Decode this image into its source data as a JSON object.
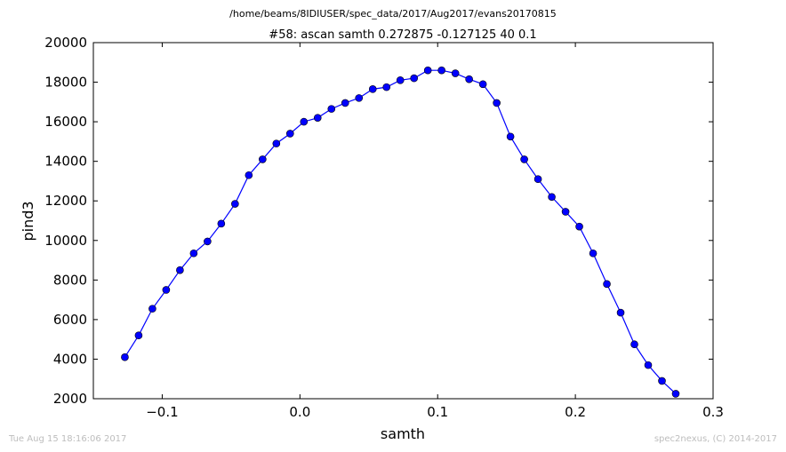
{
  "chart_data": {
    "type": "line",
    "supertitle": "/home/beams/8IDIUSER/spec_data/2017/Aug2017/evans20170815",
    "title": "#58: ascan  samth 0.272875 -0.127125  40 0.1",
    "xlabel": "samth",
    "ylabel": "pind3",
    "xlim": [
      -0.15,
      0.3
    ],
    "ylim": [
      2000,
      20000
    ],
    "xticks": [
      -0.1,
      0.0,
      0.1,
      0.2,
      0.3
    ],
    "xtick_labels": [
      "−0.1",
      "0.0",
      "0.1",
      "0.2",
      "0.3"
    ],
    "yticks": [
      2000,
      4000,
      6000,
      8000,
      10000,
      12000,
      14000,
      16000,
      18000,
      20000
    ],
    "ytick_labels": [
      "2000",
      "4000",
      "6000",
      "8000",
      "10000",
      "12000",
      "14000",
      "16000",
      "18000",
      "20000"
    ],
    "grid": false,
    "line_color": "#0000ff",
    "marker_color": "#0000ff",
    "series": [
      {
        "x": [
          -0.127125,
          -0.117125,
          -0.107125,
          -0.097125,
          -0.087125,
          -0.077125,
          -0.067125,
          -0.057125,
          -0.047125,
          -0.037125,
          -0.027125,
          -0.017125,
          -0.007125,
          0.002875,
          0.012875,
          0.022875,
          0.032875,
          0.042875,
          0.052875,
          0.062875,
          0.072875,
          0.082875,
          0.092875,
          0.102875,
          0.112875,
          0.122875,
          0.132875,
          0.142875,
          0.152875,
          0.162875,
          0.172875,
          0.182875,
          0.192875,
          0.202875,
          0.212875,
          0.222875,
          0.232875,
          0.242875,
          0.252875,
          0.262875,
          0.272875
        ],
        "y": [
          4100,
          5200,
          6550,
          7500,
          8500,
          9350,
          9950,
          10850,
          11850,
          13300,
          14100,
          14900,
          15400,
          16000,
          16200,
          16650,
          16950,
          17200,
          17650,
          17750,
          18100,
          18200,
          18600,
          18600,
          18450,
          18150,
          17900,
          16950,
          15250,
          14100,
          13100,
          12200,
          11450,
          10700,
          9350,
          7800,
          6350,
          4750,
          3700,
          2900,
          2250
        ]
      }
    ]
  },
  "footer": {
    "timestamp": "Tue Aug 15 18:16:06 2017",
    "credit": "spec2nexus, (C) 2014-2017"
  }
}
